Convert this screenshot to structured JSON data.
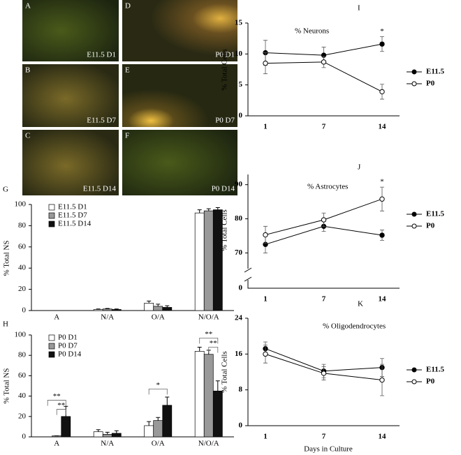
{
  "micrographs": [
    {
      "letter": "A",
      "caption": "E11.5 D1"
    },
    {
      "letter": "D",
      "caption": "P0 D1"
    },
    {
      "letter": "B",
      "caption": "E11.5 D7"
    },
    {
      "letter": "E",
      "caption": "P0 D7"
    },
    {
      "letter": "C",
      "caption": "E11.5 D14"
    },
    {
      "letter": "F",
      "caption": "P0 D14"
    }
  ],
  "chart_data": [
    {
      "type": "bar",
      "panel": "G",
      "ylabel": "% Total NS",
      "categories": [
        "A",
        "N/A",
        "O/A",
        "N/O/A"
      ],
      "series": [
        {
          "name": "E11.5 D1",
          "color": "#ffffff",
          "values": [
            0,
            1,
            7,
            92
          ],
          "errors": [
            0,
            0.5,
            2,
            3
          ]
        },
        {
          "name": "E11.5 D7",
          "color": "#999999",
          "values": [
            0,
            1.5,
            4,
            94
          ],
          "errors": [
            0,
            0.5,
            2,
            2
          ]
        },
        {
          "name": "E11.5 D14",
          "color": "#111111",
          "values": [
            0,
            1,
            3,
            95
          ],
          "errors": [
            0,
            0.5,
            1.5,
            2
          ]
        }
      ],
      "ylim": [
        0,
        100
      ],
      "yticks": [
        0,
        20,
        40,
        60,
        80,
        100
      ],
      "legend": "upper left"
    },
    {
      "type": "bar",
      "panel": "H",
      "ylabel": "% Total NS",
      "categories": [
        "A",
        "N/A",
        "O/A",
        "N/O/A"
      ],
      "series": [
        {
          "name": "P0 D1",
          "color": "#ffffff",
          "values": [
            0,
            5,
            11,
            84
          ],
          "errors": [
            0,
            2,
            4,
            4
          ]
        },
        {
          "name": "P0 D7",
          "color": "#999999",
          "values": [
            1,
            2.5,
            16,
            81
          ],
          "errors": [
            0,
            2,
            3,
            4
          ]
        },
        {
          "name": "P0 D14",
          "color": "#111111",
          "values": [
            20,
            3.5,
            31,
            45
          ],
          "errors": [
            10,
            2.5,
            8,
            10
          ]
        }
      ],
      "ylim": [
        0,
        100
      ],
      "yticks": [
        0,
        20,
        40,
        60,
        80,
        100
      ],
      "legend": "upper left",
      "annotations": [
        "**",
        "**",
        "*",
        "**",
        "**"
      ]
    },
    {
      "type": "line",
      "panel": "I",
      "title": "% Neurons",
      "ylabel": "% Total Cells",
      "categories": [
        "1",
        "7",
        "14"
      ],
      "series": [
        {
          "name": "E11.5",
          "color": "#000000",
          "marker_fill": "#000000",
          "values": [
            10.2,
            9.8,
            11.6
          ],
          "errors": [
            2,
            1.3,
            1.2
          ]
        },
        {
          "name": "P0",
          "color": "#000000",
          "marker_fill": "#ffffff",
          "values": [
            8.5,
            8.7,
            3.9
          ],
          "errors": [
            1.7,
            0.9,
            1.2
          ]
        }
      ],
      "ylim": [
        0,
        15
      ],
      "yticks": [
        0,
        5,
        10,
        15
      ],
      "legend": "right",
      "annotations": [
        "*"
      ]
    },
    {
      "type": "line",
      "panel": "J",
      "title": "% Astrocytes",
      "ylabel": "% Total Cells",
      "categories": [
        "1",
        "7",
        "14"
      ],
      "series": [
        {
          "name": "E11.5",
          "color": "#000000",
          "marker_fill": "#000000",
          "values": [
            72.5,
            77.8,
            75.2
          ],
          "errors": [
            2.5,
            1.5,
            1.5
          ]
        },
        {
          "name": "P0",
          "color": "#000000",
          "marker_fill": "#ffffff",
          "values": [
            75.3,
            79.7,
            85.8
          ],
          "errors": [
            2.5,
            2,
            3.5
          ]
        }
      ],
      "ylim": [
        66,
        93
      ],
      "yticks": [
        70,
        80,
        90
      ],
      "axis_break_floor": 0,
      "legend": "right",
      "annotations": [
        "*"
      ]
    },
    {
      "type": "line",
      "panel": "K",
      "title": "% Oligodendrocytes",
      "ylabel": "% Total Cells",
      "xlabel": "Days in Culture",
      "categories": [
        "1",
        "7",
        "14"
      ],
      "series": [
        {
          "name": "E11.5",
          "color": "#000000",
          "marker_fill": "#000000",
          "values": [
            17.2,
            12.2,
            13
          ],
          "errors": [
            1.5,
            1.5,
            2
          ]
        },
        {
          "name": "P0",
          "color": "#000000",
          "marker_fill": "#ffffff",
          "values": [
            16,
            11.7,
            10.2
          ],
          "errors": [
            2,
            1.5,
            3.5
          ]
        }
      ],
      "ylim": [
        0,
        24
      ],
      "yticks": [
        0,
        8,
        16,
        24
      ],
      "legend": "right"
    }
  ]
}
